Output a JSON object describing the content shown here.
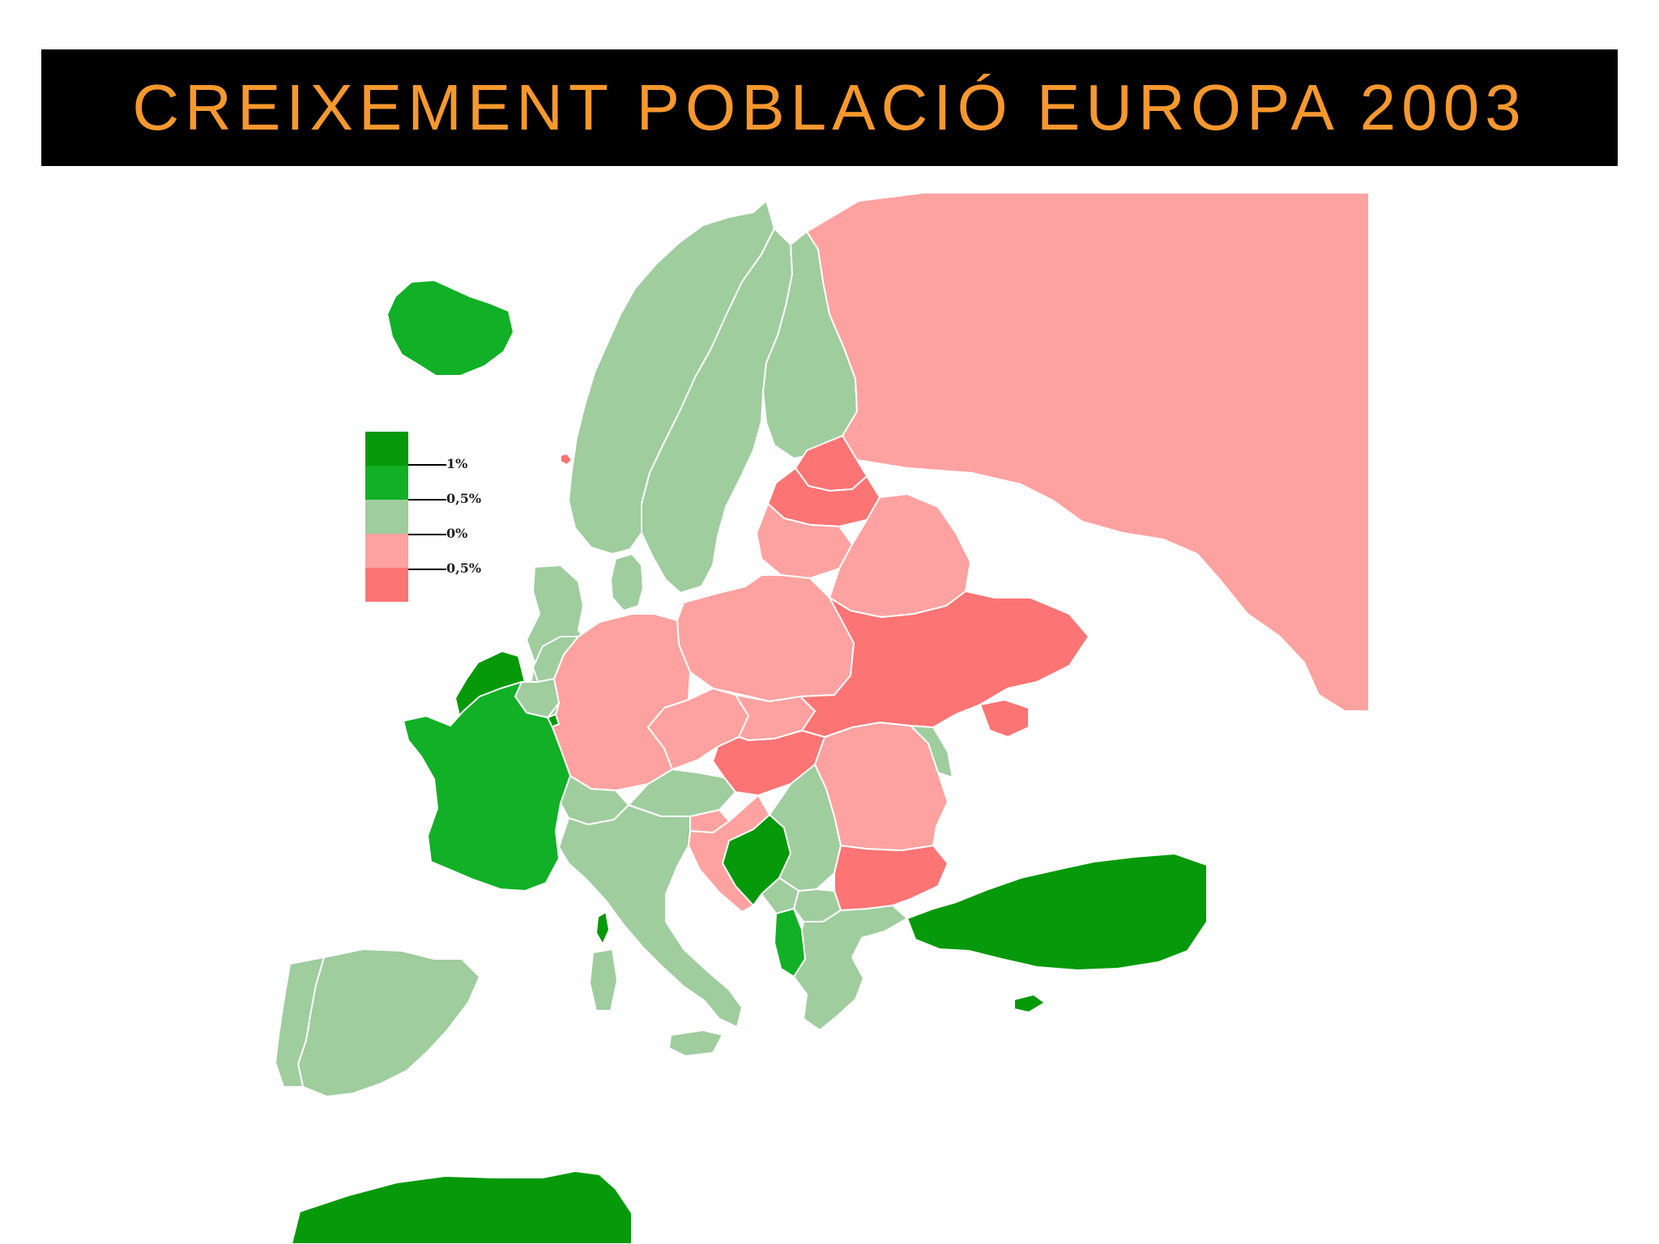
{
  "title": "CREIXEMENT POBLACIÓ EUROPA 2003",
  "colors": {
    "title_background": "#000000",
    "title_text": "#f7982d",
    "sea": "#ffffff",
    "border": "#ffffff"
  },
  "legend": {
    "classes": [
      {
        "color": "#06990a"
      },
      {
        "color": "#11b026"
      },
      {
        "color": "#9fcd9e"
      },
      {
        "color": "#fda2a0"
      },
      {
        "color": "#fc7474"
      }
    ],
    "labels": [
      "1%",
      "0,5%",
      "0%",
      "0,5%"
    ]
  },
  "map": {
    "regions": [
      {
        "name": "Iceland",
        "class": 1
      },
      {
        "name": "Ireland",
        "class": 0
      },
      {
        "name": "United Kingdom",
        "class": 2
      },
      {
        "name": "Norway",
        "class": 2
      },
      {
        "name": "Sweden",
        "class": 2
      },
      {
        "name": "Finland",
        "class": 2
      },
      {
        "name": "Denmark",
        "class": 2
      },
      {
        "name": "Estonia",
        "class": 4
      },
      {
        "name": "Latvia",
        "class": 4
      },
      {
        "name": "Lithuania",
        "class": 3
      },
      {
        "name": "Belarus",
        "class": 3
      },
      {
        "name": "Russia",
        "class": 3
      },
      {
        "name": "Ukraine",
        "class": 4
      },
      {
        "name": "Crimea",
        "class": 4
      },
      {
        "name": "Poland",
        "class": 3
      },
      {
        "name": "Germany",
        "class": 3
      },
      {
        "name": "Netherlands",
        "class": 2
      },
      {
        "name": "Belgium",
        "class": 2
      },
      {
        "name": "Luxembourg",
        "class": 0
      },
      {
        "name": "France",
        "class": 1
      },
      {
        "name": "Switzerland",
        "class": 2
      },
      {
        "name": "Austria",
        "class": 2
      },
      {
        "name": "Czech Republic",
        "class": 3
      },
      {
        "name": "Slovakia",
        "class": 3
      },
      {
        "name": "Hungary",
        "class": 4
      },
      {
        "name": "Slovenia",
        "class": 3
      },
      {
        "name": "Croatia",
        "class": 3
      },
      {
        "name": "Bosnia and Herzegovina",
        "class": 0
      },
      {
        "name": "Serbia",
        "class": 2
      },
      {
        "name": "Montenegro",
        "class": 2
      },
      {
        "name": "Albania",
        "class": 1
      },
      {
        "name": "Macedonia",
        "class": 2
      },
      {
        "name": "Romania",
        "class": 3
      },
      {
        "name": "Moldova",
        "class": 2
      },
      {
        "name": "Bulgaria",
        "class": 4
      },
      {
        "name": "Greece",
        "class": 2
      },
      {
        "name": "Turkey",
        "class": 0
      },
      {
        "name": "Cyprus",
        "class": 0
      },
      {
        "name": "Spain",
        "class": 2
      },
      {
        "name": "Portugal",
        "class": 2
      },
      {
        "name": "Italy",
        "class": 2
      },
      {
        "name": "Sardinia",
        "class": 2
      },
      {
        "name": "Corsica",
        "class": 0
      },
      {
        "name": "Sicily",
        "class": 2
      },
      {
        "name": "North Africa",
        "class": 0
      },
      {
        "name": "Faroe Islands",
        "class": 4
      }
    ]
  }
}
